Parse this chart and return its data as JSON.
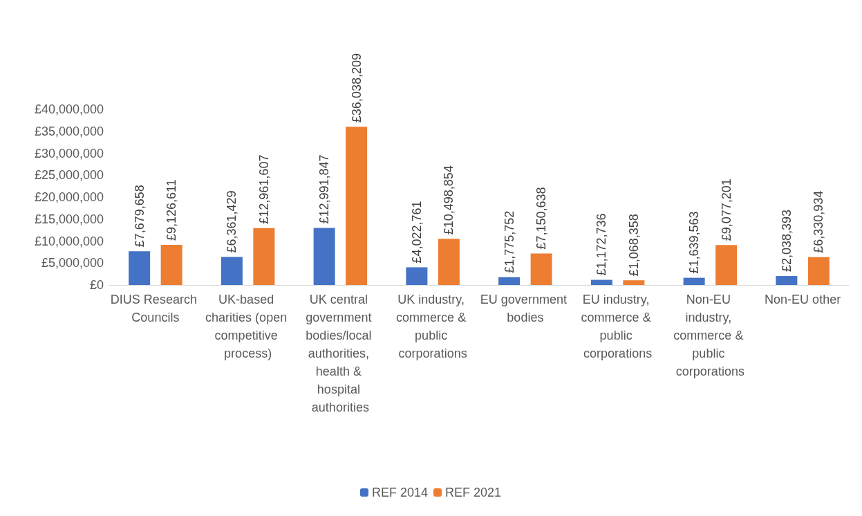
{
  "chart_data": {
    "type": "bar",
    "categories": [
      "DIUS Research Councils",
      "UK-based charities (open competitive process)",
      "UK central government bodies/local authorities, health & hospital authorities",
      "UK industry, commerce & public corporations",
      "EU government bodies",
      "EU industry, commerce & public corporations",
      "Non-EU industry, commerce & public corporations",
      "Non-EU other"
    ],
    "series": [
      {
        "name": "REF 2014",
        "color": "#4472c4",
        "values": [
          7679658,
          6361429,
          12991847,
          4022761,
          1775752,
          1172736,
          1639563,
          2038393
        ],
        "value_labels": [
          "£7,679,658",
          "£6,361,429",
          "£12,991,847",
          "£4,022,761",
          "£1,775,752",
          "£1,172,736",
          "£1,639,563",
          "£2,038,393"
        ]
      },
      {
        "name": "REF 2021",
        "color": "#ed7d31",
        "values": [
          9126611,
          12961607,
          36038209,
          10498854,
          7150638,
          1068358,
          9077201,
          6330934
        ],
        "value_labels": [
          "£9,126,611",
          "£12,961,607",
          "£36,038,209",
          "£10,498,854",
          "£7,150,638",
          "£1,068,358",
          "£9,077,201",
          "£6,330,934"
        ]
      }
    ],
    "ylim": [
      0,
      40000000
    ],
    "yticks": [
      {
        "value": 0,
        "label": "£0"
      },
      {
        "value": 5000000,
        "label": "£5,000,000"
      },
      {
        "value": 10000000,
        "label": "£10,000,000"
      },
      {
        "value": 15000000,
        "label": "£15,000,000"
      },
      {
        "value": 20000000,
        "label": "£20,000,000"
      },
      {
        "value": 25000000,
        "label": "£25,000,000"
      },
      {
        "value": 30000000,
        "label": "£30,000,000"
      },
      {
        "value": 35000000,
        "label": "£35,000,000"
      },
      {
        "value": 40000000,
        "label": "£40,000,000"
      }
    ],
    "grid": false,
    "legend": "bottom"
  }
}
